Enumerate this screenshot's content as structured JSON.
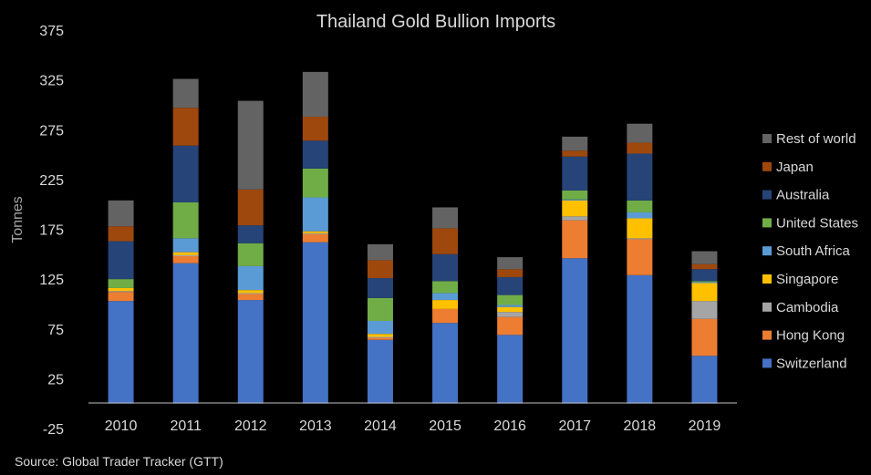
{
  "chart_data": {
    "type": "bar",
    "stacked": true,
    "title": "Thailand Gold Bullion Imports",
    "ylabel": "Tonnes",
    "xlabel": "",
    "source": "Source: Global Trader Tracker (GTT)",
    "categories": [
      "2010",
      "2011",
      "2012",
      "2013",
      "2014",
      "2015",
      "2016",
      "2017",
      "2018",
      "2019"
    ],
    "ylim": [
      -25,
      375
    ],
    "yticks": [
      "375",
      "325",
      "275",
      "225",
      "175",
      "125",
      "75",
      "25",
      "-25"
    ],
    "ytick_values": [
      375,
      325,
      275,
      225,
      175,
      125,
      75,
      25,
      -25
    ],
    "baseline": 0,
    "grid": false,
    "legend_position": "right",
    "series": [
      {
        "name": "Switzerland",
        "color": "#4472c4",
        "values": [
          103,
          141,
          104,
          162,
          64,
          81,
          69,
          146,
          129,
          48
        ]
      },
      {
        "name": "Hong Kong",
        "color": "#ed7d31",
        "values": [
          9,
          7,
          6,
          8,
          2,
          14,
          18,
          38,
          36,
          37
        ]
      },
      {
        "name": "Cambodia",
        "color": "#a5a5a5",
        "values": [
          1,
          1,
          1,
          1,
          1,
          0,
          5,
          4,
          1,
          18
        ]
      },
      {
        "name": "Singapore",
        "color": "#ffc000",
        "values": [
          3,
          3,
          3,
          2,
          3,
          9,
          5,
          16,
          20,
          18
        ]
      },
      {
        "name": "South Africa",
        "color": "#5b9bd5",
        "values": [
          0,
          14,
          24,
          34,
          13,
          7,
          2,
          1,
          6,
          1
        ]
      },
      {
        "name": "United States",
        "color": "#70ad47",
        "values": [
          9,
          36,
          23,
          29,
          23,
          12,
          10,
          9,
          12,
          1
        ]
      },
      {
        "name": "Australia",
        "color": "#264478",
        "values": [
          38,
          57,
          18,
          28,
          20,
          27,
          18,
          34,
          47,
          12
        ]
      },
      {
        "name": "Japan",
        "color": "#9e480e",
        "values": [
          15,
          38,
          36,
          24,
          18,
          26,
          8,
          6,
          11,
          5
        ]
      },
      {
        "name": "Rest of world",
        "color": "#636363",
        "values": [
          26,
          29,
          89,
          45,
          16,
          21,
          12,
          14,
          19,
          13
        ]
      }
    ]
  }
}
